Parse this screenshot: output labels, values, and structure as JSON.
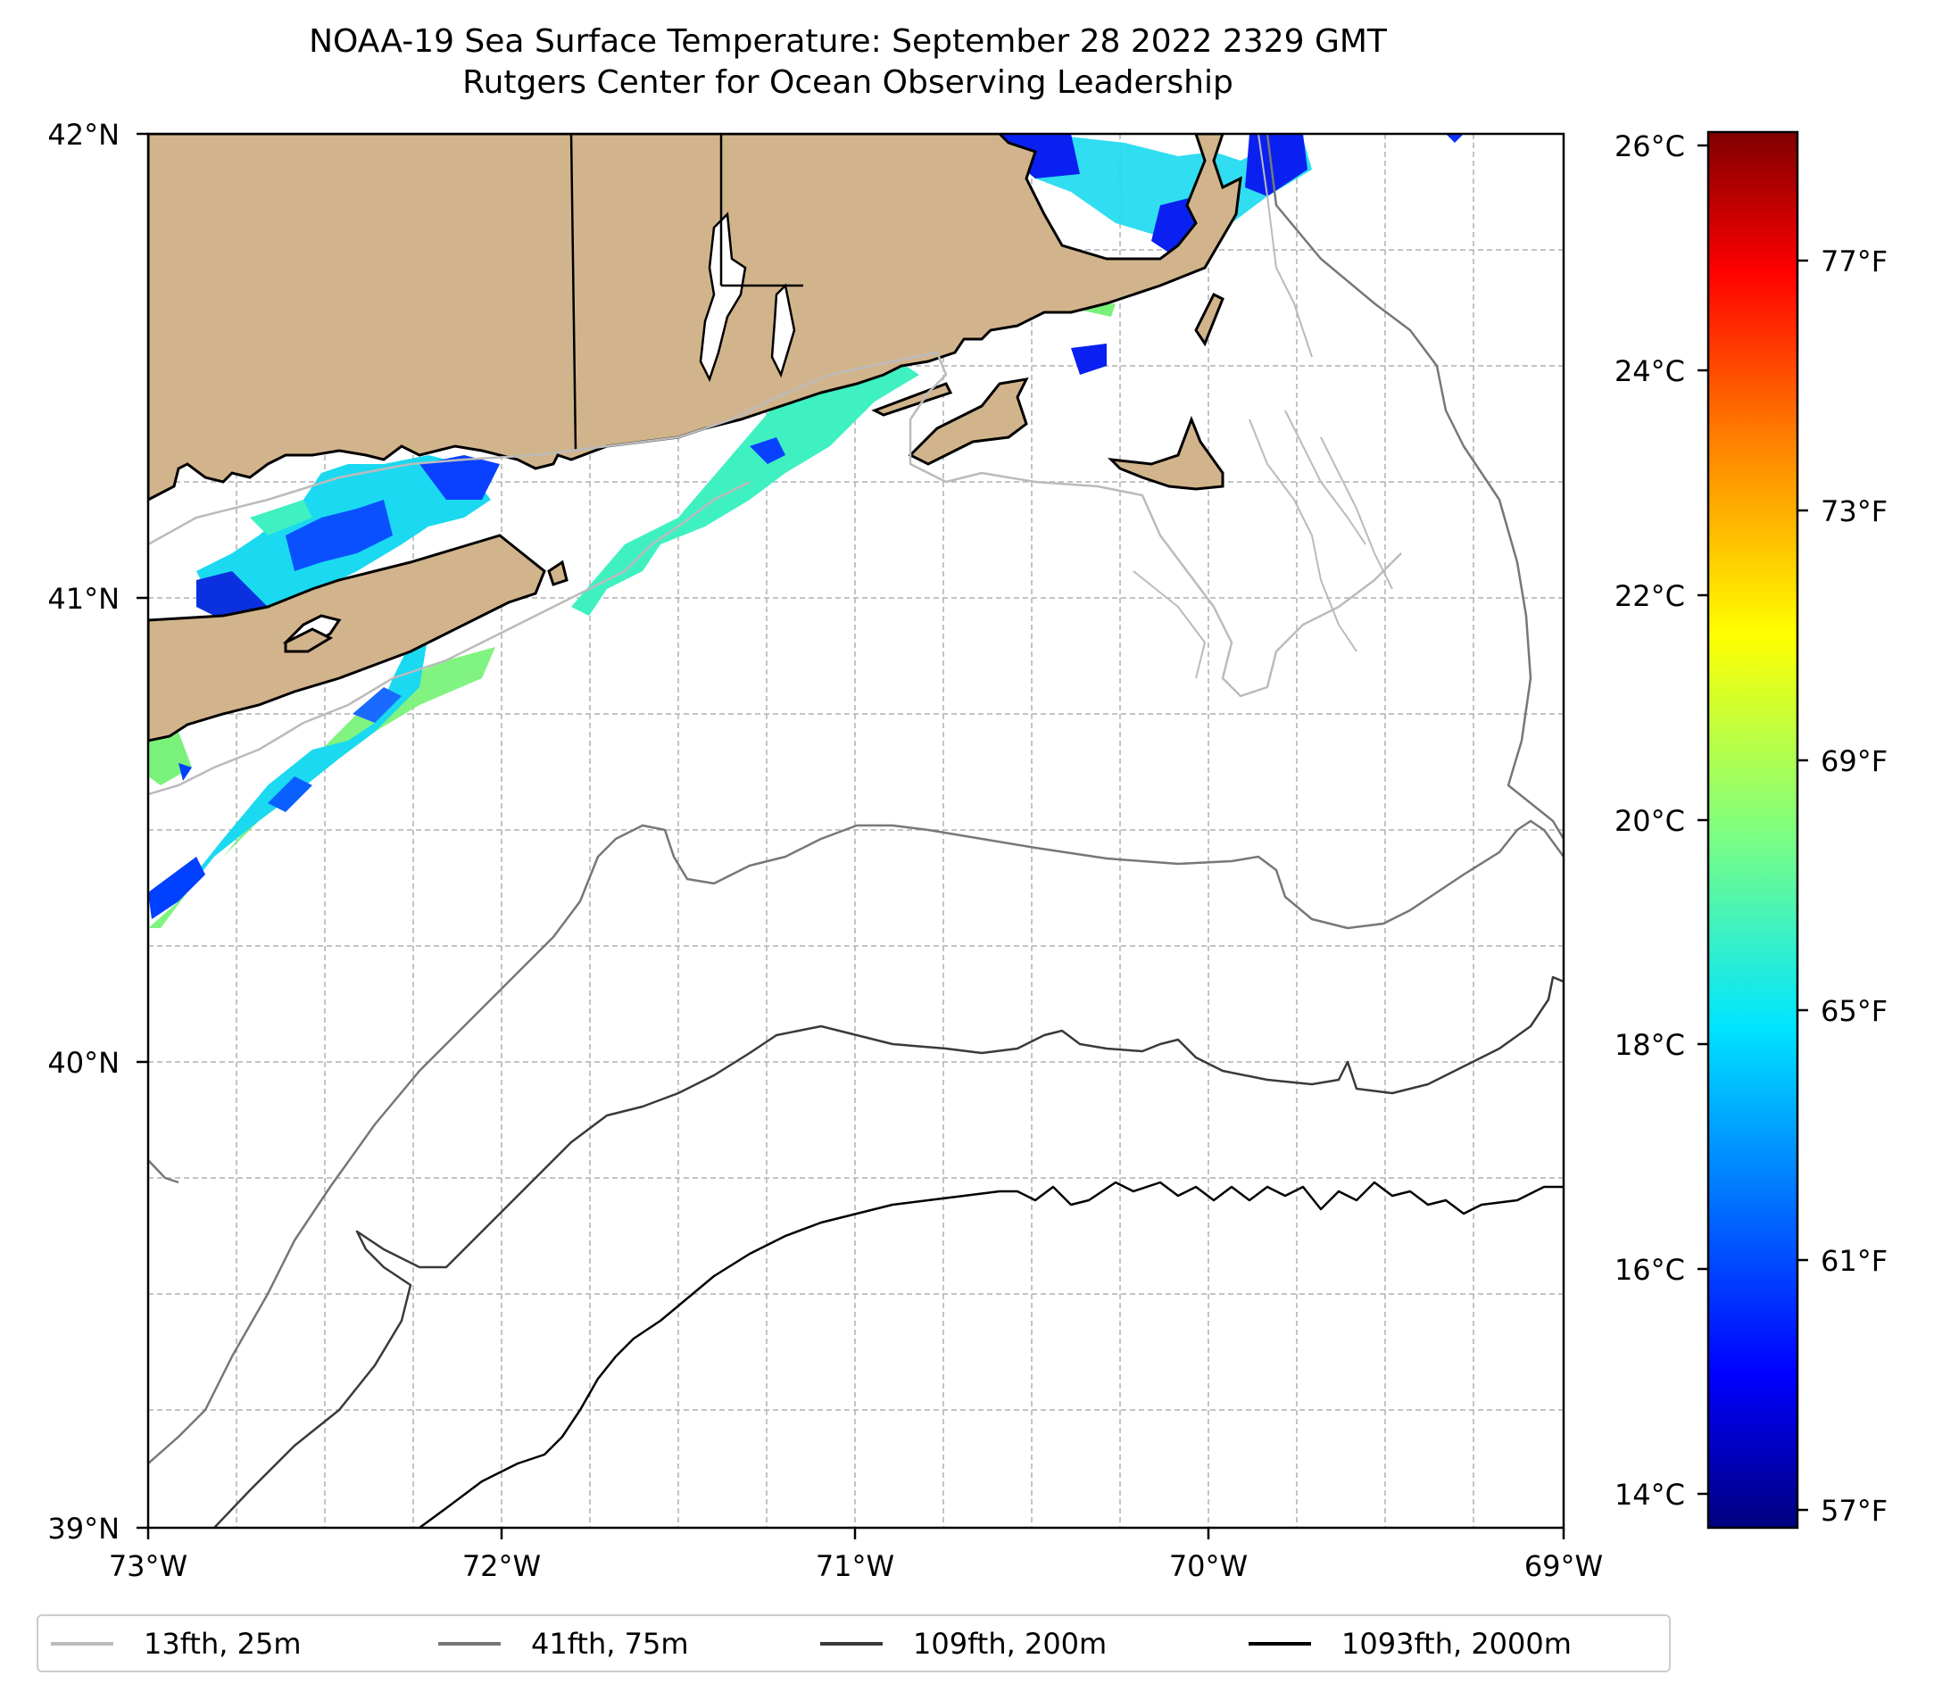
{
  "title": {
    "line1": "NOAA-19 Sea Surface Temperature: September 28 2022 2329 GMT",
    "line2": "Rutgers Center for Ocean Observing Leadership"
  },
  "map": {
    "lat_labels": [
      "42°N",
      "41°N",
      "40°N",
      "39°N"
    ],
    "lon_labels": [
      "73°W",
      "72°W",
      "71°W",
      "70°W",
      "69°W"
    ],
    "lat_range": [
      39,
      42
    ],
    "lon_range": [
      -73,
      -69
    ],
    "colors": {
      "land": "#d2b48c",
      "ocean": "#ffffff",
      "grid": "#b0b0b0"
    }
  },
  "colorbar": {
    "celsius_labels": [
      "26°C",
      "24°C",
      "22°C",
      "20°C",
      "18°C",
      "16°C",
      "14°C"
    ],
    "fahrenheit_labels": [
      "77°F",
      "73°F",
      "69°F",
      "65°F",
      "61°F",
      "57°F"
    ],
    "colormap": "jet",
    "range_celsius": [
      13.9,
      26.1
    ],
    "colors": [
      "#00007f",
      "#0000ff",
      "#007fff",
      "#00ffff",
      "#7fff7f",
      "#ffff00",
      "#ff7f00",
      "#ff0000",
      "#7f0000"
    ]
  },
  "legend": {
    "items": [
      {
        "label": "13fth, 25m",
        "color": "#bbbbbb"
      },
      {
        "label": "41fth, 75m",
        "color": "#777777"
      },
      {
        "label": "109fth, 200m",
        "color": "#3a3a3a"
      },
      {
        "label": "1093fth, 2000m",
        "color": "#000000"
      }
    ]
  }
}
